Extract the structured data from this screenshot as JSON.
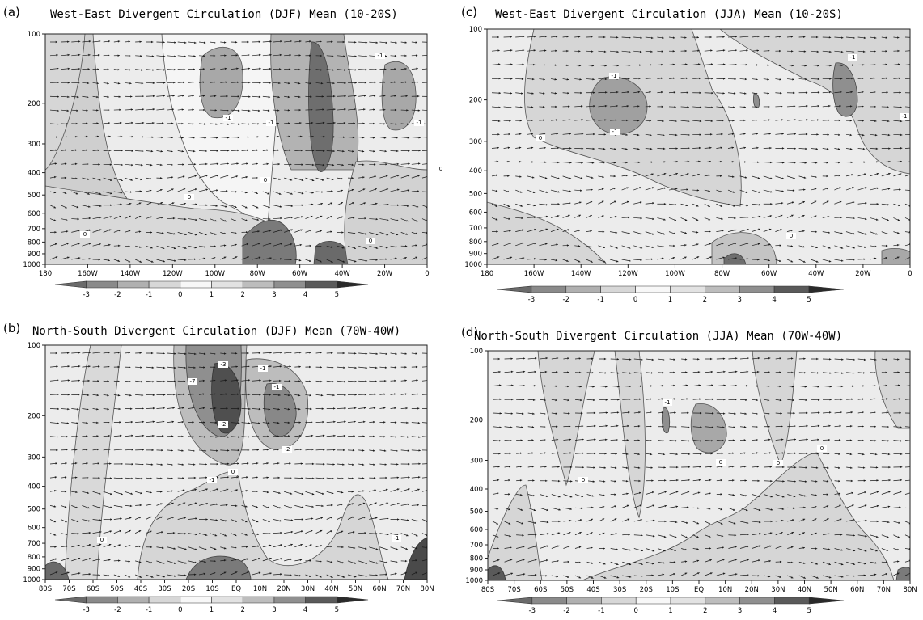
{
  "chart_data": [
    {
      "id": "a",
      "type": "heatmap",
      "panel_label": "(a)",
      "title": "West-East Divergent Circulation (DJF) Mean (10-20S)",
      "x_ticks": [
        "180",
        "160W",
        "140W",
        "120W",
        "100W",
        "80W",
        "60W",
        "40W",
        "20W",
        "0"
      ],
      "y_ticks": [
        100,
        200,
        300,
        400,
        500,
        600,
        700,
        800,
        900,
        1000
      ],
      "ylim": [
        1000,
        100
      ],
      "y_scale": "log",
      "colorbar_labels": [
        -3,
        -2,
        -1,
        0,
        1,
        2,
        3,
        4,
        5
      ],
      "contour_labels": [
        "-1",
        "-1",
        "-1",
        "-1",
        "0",
        "0",
        "0",
        "0",
        "0"
      ]
    },
    {
      "id": "b",
      "type": "heatmap",
      "panel_label": "(b)",
      "title": "North-South Divergent Circulation (DJF) Mean (70W-40W)",
      "x_ticks": [
        "80S",
        "70S",
        "60S",
        "50S",
        "40S",
        "30S",
        "20S",
        "10S",
        "EQ",
        "10N",
        "20N",
        "30N",
        "40N",
        "50N",
        "60N",
        "70N",
        "80N"
      ],
      "y_ticks": [
        100,
        200,
        300,
        400,
        500,
        600,
        700,
        800,
        900,
        1000
      ],
      "ylim": [
        1000,
        100
      ],
      "y_scale": "log",
      "colorbar_labels": [
        -3,
        -2,
        -1,
        0,
        1,
        2,
        3,
        4,
        5
      ],
      "contour_labels": [
        "-7",
        "-3",
        "-2",
        "-1",
        "-1",
        "-2",
        "-1",
        "0",
        "0",
        "-1"
      ]
    },
    {
      "id": "c",
      "type": "heatmap",
      "panel_label": "(c)",
      "title": "West-East Divergent Circulation (JJA) Mean (10-20S)",
      "x_ticks": [
        "180",
        "160W",
        "140W",
        "120W",
        "100W",
        "80W",
        "60W",
        "40W",
        "20W",
        "0"
      ],
      "y_ticks": [
        100,
        200,
        300,
        400,
        500,
        600,
        700,
        800,
        900,
        1000
      ],
      "ylim": [
        1000,
        100
      ],
      "y_scale": "log",
      "colorbar_labels": [
        -3,
        -2,
        -1,
        0,
        1,
        2,
        3,
        4,
        5
      ],
      "contour_labels": [
        "-1",
        "-1",
        "-1",
        "-1",
        "0",
        "0",
        "0"
      ]
    },
    {
      "id": "d",
      "type": "heatmap",
      "panel_label": "(d)",
      "title": "North-South Divergent Circulation (JJA) Mean (70W-40W)",
      "x_ticks": [
        "80S",
        "70S",
        "60S",
        "50S",
        "40S",
        "30S",
        "20S",
        "10S",
        "EQ",
        "10N",
        "20N",
        "30N",
        "40N",
        "50N",
        "60N",
        "70N",
        "80N"
      ],
      "y_ticks": [
        100,
        200,
        300,
        400,
        500,
        600,
        700,
        800,
        900,
        1000
      ],
      "ylim": [
        1000,
        100
      ],
      "y_scale": "log",
      "colorbar_labels": [
        -3,
        -2,
        -1,
        0,
        1,
        2,
        3,
        4,
        5
      ],
      "contour_labels": [
        "-1",
        "0",
        "0",
        "0",
        "0"
      ]
    }
  ]
}
